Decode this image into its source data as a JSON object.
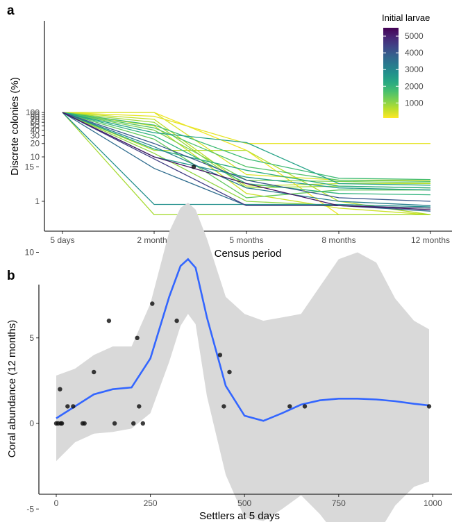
{
  "chart_data": [
    {
      "panel": "a",
      "type": "line",
      "xlabel": "Census period",
      "ylabel": "Discrete colonies (%)",
      "y_scale": "log",
      "x_categories": [
        "5 days",
        "2 months",
        "5 months",
        "8 months",
        "12 months"
      ],
      "y_ticks": [
        1,
        10,
        20,
        30,
        40,
        50,
        60,
        70,
        80,
        90,
        100
      ],
      "ylim": [
        0.5,
        100
      ],
      "legend": {
        "title": "Initial larvae",
        "placement": "top-right",
        "ticks": [
          1000,
          2000,
          3000,
          4000,
          5000
        ],
        "range": [
          100,
          5500
        ],
        "colormap": "viridis"
      },
      "series": [
        {
          "initial_larvae": 200,
          "values": [
            100,
            100,
            14,
            0.5,
            0.5
          ]
        },
        {
          "initial_larvae": 300,
          "values": [
            100,
            82,
            20,
            20,
            20
          ]
        },
        {
          "initial_larvae": 400,
          "values": [
            100,
            100,
            4,
            3,
            3
          ]
        },
        {
          "initial_larvae": 500,
          "values": [
            100,
            50,
            1.5,
            0.7,
            0.5
          ]
        },
        {
          "initial_larvae": 600,
          "values": [
            100,
            70,
            2.2,
            2.5,
            2.5
          ]
        },
        {
          "initial_larvae": 700,
          "values": [
            100,
            14,
            14,
            1,
            0.5
          ]
        },
        {
          "initial_larvae": 800,
          "values": [
            100,
            0.5,
            0.5,
            0.5,
            0.5
          ]
        },
        {
          "initial_larvae": 900,
          "values": [
            100,
            60,
            2.0,
            2.2,
            2.0
          ]
        },
        {
          "initial_larvae": 1000,
          "values": [
            100,
            12,
            1.0,
            0.8,
            0.7
          ]
        },
        {
          "initial_larvae": 1200,
          "values": [
            100,
            40,
            3,
            2.8,
            2.6
          ]
        },
        {
          "initial_larvae": 1400,
          "values": [
            100,
            25,
            1.2,
            1.8,
            1.8
          ]
        },
        {
          "initial_larvae": 1600,
          "values": [
            100,
            45,
            6,
            3,
            2.8
          ]
        },
        {
          "initial_larvae": 1800,
          "values": [
            100,
            52,
            9,
            3.3,
            3.1
          ]
        },
        {
          "initial_larvae": 2000,
          "values": [
            100,
            30,
            2.5,
            1.5,
            1.4
          ]
        },
        {
          "initial_larvae": 2200,
          "values": [
            100,
            15,
            5,
            2.2,
            2.0
          ]
        },
        {
          "initial_larvae": 2400,
          "values": [
            100,
            35,
            21,
            2.5,
            2.3
          ]
        },
        {
          "initial_larvae": 2600,
          "values": [
            100,
            10,
            3.5,
            2.0,
            1.8
          ]
        },
        {
          "initial_larvae": 2800,
          "values": [
            100,
            0.85,
            0.85,
            0.85,
            0.75
          ]
        },
        {
          "initial_larvae": 3200,
          "values": [
            100,
            17,
            2,
            1,
            0.8
          ]
        },
        {
          "initial_larvae": 3600,
          "values": [
            100,
            5.5,
            0.8,
            0.8,
            0.6
          ]
        },
        {
          "initial_larvae": 4000,
          "values": [
            100,
            20,
            3,
            1.2,
            1.0
          ]
        },
        {
          "initial_larvae": 4500,
          "values": [
            100,
            9,
            0.8,
            0.8,
            0.7
          ]
        },
        {
          "initial_larvae": 5200,
          "values": [
            100,
            10,
            2.5,
            0.8,
            0.65
          ]
        }
      ]
    },
    {
      "panel": "b",
      "type": "scatter",
      "xlabel": "Settlers at 5 days",
      "ylabel": "Coral abundance (12 months)",
      "x_ticks": [
        0,
        250,
        500,
        750,
        1000
      ],
      "y_ticks": [
        -5,
        0,
        5,
        10,
        15
      ],
      "xlim": [
        -20,
        1015
      ],
      "ylim": [
        -8.6,
        16.3
      ],
      "points": [
        [
          0,
          0
        ],
        [
          5,
          0
        ],
        [
          10,
          2
        ],
        [
          12,
          0
        ],
        [
          15,
          0
        ],
        [
          30,
          1
        ],
        [
          45,
          1
        ],
        [
          70,
          0
        ],
        [
          75,
          0
        ],
        [
          100,
          3
        ],
        [
          140,
          6
        ],
        [
          155,
          0
        ],
        [
          205,
          0
        ],
        [
          215,
          5
        ],
        [
          220,
          1
        ],
        [
          230,
          0
        ],
        [
          255,
          7
        ],
        [
          320,
          6
        ],
        [
          365,
          15
        ],
        [
          435,
          4
        ],
        [
          445,
          1
        ],
        [
          460,
          3
        ],
        [
          620,
          1
        ],
        [
          660,
          1
        ],
        [
          990,
          1
        ]
      ],
      "smooth": {
        "color": "#3366ff",
        "x": [
          0,
          50,
          100,
          150,
          200,
          250,
          300,
          330,
          350,
          370,
          400,
          450,
          500,
          550,
          600,
          650,
          700,
          750,
          800,
          850,
          900,
          950,
          990
        ],
        "y": [
          0.3,
          1.0,
          1.7,
          2.0,
          2.1,
          3.8,
          7.4,
          9.2,
          9.6,
          9.1,
          6.2,
          2.2,
          0.45,
          0.15,
          0.6,
          1.1,
          1.35,
          1.45,
          1.45,
          1.4,
          1.3,
          1.15,
          1.05
        ],
        "lower": [
          -2.2,
          -1.1,
          -0.6,
          -0.5,
          -0.3,
          0.6,
          3.6,
          5.7,
          6.4,
          5.8,
          1.6,
          -3.0,
          -5.5,
          -5.7,
          -5.0,
          -4.2,
          -5.3,
          -6.7,
          -7.1,
          -6.6,
          -4.8,
          -3.7,
          -3.4
        ],
        "upper": [
          2.8,
          3.2,
          4.0,
          4.5,
          4.5,
          7.0,
          11.2,
          12.6,
          12.9,
          12.5,
          10.8,
          7.4,
          6.4,
          6.0,
          6.2,
          6.4,
          8.0,
          9.6,
          10.0,
          9.4,
          7.3,
          6.0,
          5.5
        ]
      }
    }
  ]
}
